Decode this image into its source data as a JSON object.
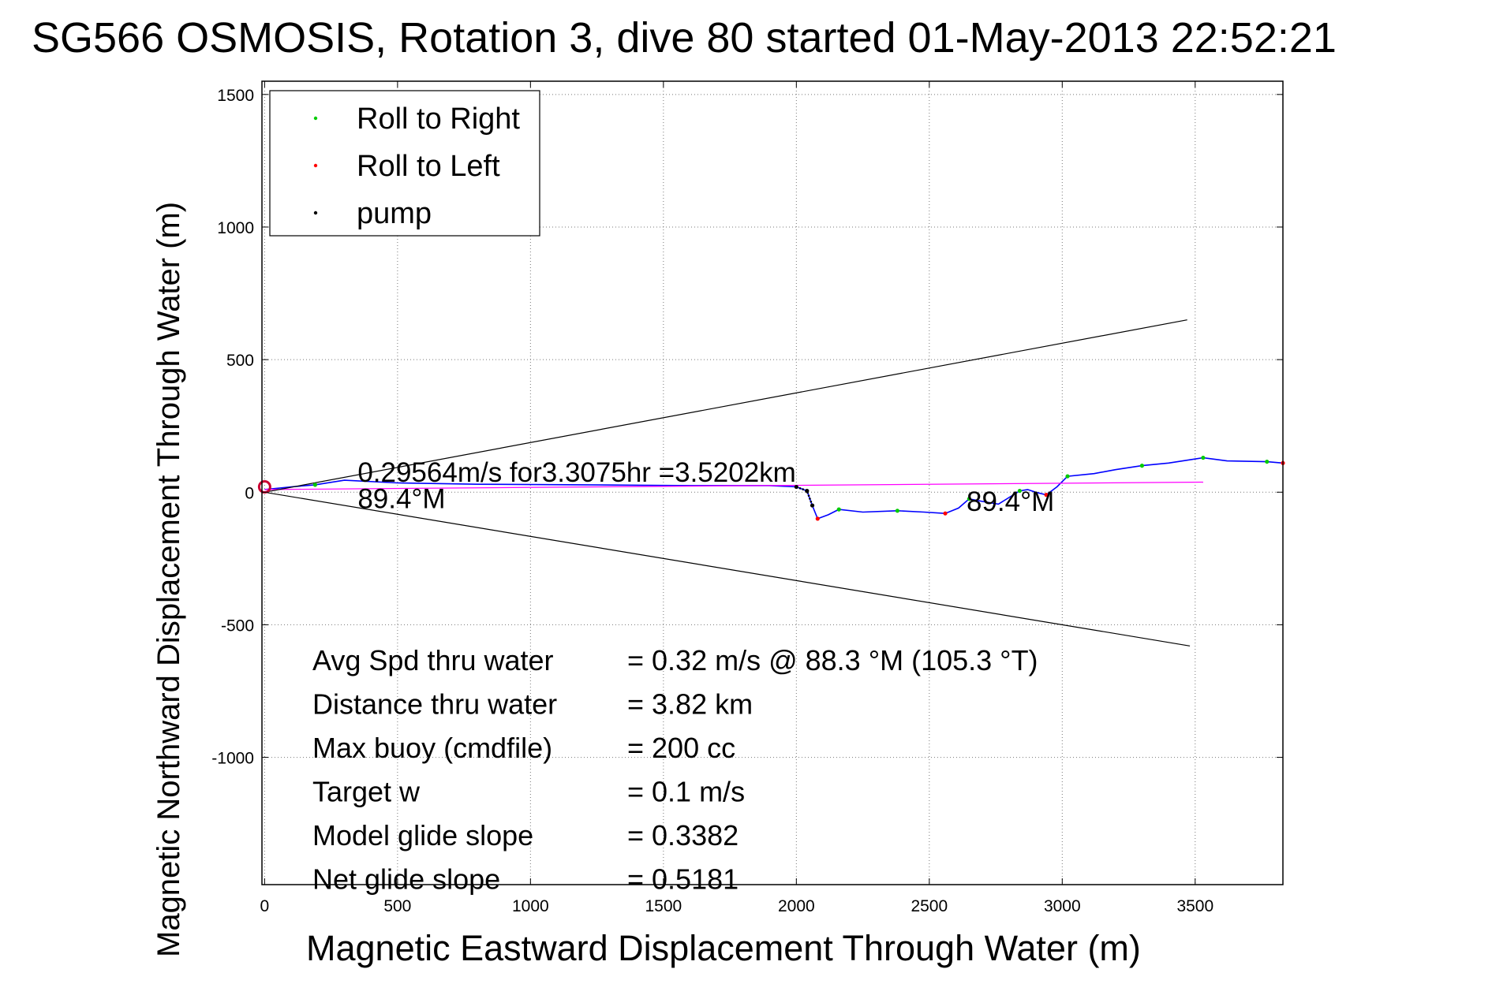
{
  "chart_data": {
    "type": "line",
    "title": "SG566 OSMOSIS, Rotation 3, dive 80 started 01-May-2013 22:52:21",
    "xlabel": "Magnetic Eastward Displacement Through Water (m)",
    "ylabel": "Magnetic Northward Displacement Through Water (m)",
    "xlim": [
      -10,
      3830
    ],
    "ylim": [
      -1480,
      1550
    ],
    "xticks": [
      0,
      500,
      1000,
      1500,
      2000,
      2500,
      3000,
      3500
    ],
    "yticks": [
      -1000,
      -500,
      0,
      500,
      1000,
      1500
    ],
    "xtick_labels": [
      "0",
      "500",
      "1000",
      "1500",
      "2000",
      "2500",
      "3000",
      "3500"
    ],
    "ytick_labels": [
      "-1000",
      "-500",
      "0",
      "500",
      "1000",
      "1500"
    ],
    "grid": true,
    "legend": {
      "position": "top-left",
      "entries": [
        {
          "label": "Roll to Right",
          "color": "#00cc00"
        },
        {
          "label": "Roll to Left",
          "color": "#ff0000"
        },
        {
          "label": "pump",
          "color": "#000000"
        }
      ]
    },
    "series": [
      {
        "kind": "track",
        "color": "#0000ff",
        "x": [
          0,
          100,
          190,
          300,
          500,
          800,
          1200,
          1600,
          1900,
          2000,
          2040,
          2060,
          2080,
          2120,
          2160,
          2250,
          2380,
          2480,
          2560,
          2610,
          2650,
          2700,
          2760,
          2800,
          2840,
          2870,
          2900,
          2940,
          2980,
          3020,
          3120,
          3200,
          3300,
          3400,
          3530,
          3620,
          3770,
          3830
        ],
        "y": [
          10,
          20,
          28,
          45,
          35,
          30,
          28,
          25,
          25,
          20,
          5,
          -50,
          -100,
          -85,
          -65,
          -75,
          -70,
          -75,
          -80,
          -60,
          -25,
          -35,
          -45,
          -20,
          5,
          10,
          0,
          -10,
          20,
          60,
          70,
          85,
          100,
          110,
          130,
          118,
          115,
          110
        ]
      },
      {
        "kind": "average",
        "color": "#ff00ff",
        "x": [
          0,
          3530
        ],
        "y": [
          10,
          38
        ]
      },
      {
        "kind": "cone-upper",
        "color": "#000000",
        "x": [
          0,
          3470
        ],
        "y": [
          0,
          650
        ]
      },
      {
        "kind": "cone-lower",
        "color": "#000000",
        "x": [
          0,
          3480
        ],
        "y": [
          0,
          -580
        ]
      }
    ],
    "markers": {
      "roll_right": {
        "color": "#00cc00",
        "x": [
          190,
          2160,
          2380,
          2650,
          2840,
          3020,
          3300,
          3530,
          3770
        ],
        "y": [
          28,
          -65,
          -70,
          -25,
          5,
          60,
          100,
          130,
          115
        ]
      },
      "roll_left": {
        "color": "#ff0000",
        "x": [
          2080,
          2560,
          2940,
          3830
        ],
        "y": [
          -100,
          -80,
          -10,
          110
        ]
      },
      "pump": {
        "color": "#000000",
        "x": [
          2000,
          2040,
          2060
        ],
        "y": [
          20,
          5,
          -50
        ]
      }
    },
    "annotations": [
      {
        "text": "0.29564m/s for3.3075hr =3.5202km",
        "x": 350,
        "y": 40
      },
      {
        "text": "89.4°M",
        "x": 350,
        "y": -60
      },
      {
        "text": "89.4°M",
        "x": 2640,
        "y": -70
      }
    ],
    "stats": [
      {
        "label": "Avg Spd thru water",
        "value": "=  0.32 m/s @  88.3 °M (105.3 °T)"
      },
      {
        "label": "Distance thru water",
        "value": "=  3.82 km"
      },
      {
        "label": "Max buoy (cmdfile)",
        "value": "= 200 cc"
      },
      {
        "label": "Target w",
        "value": "= 0.1 m/s"
      },
      {
        "label": "Model glide slope",
        "value": "= 0.3382"
      },
      {
        "label": "Net glide slope",
        "value": "= 0.5181"
      }
    ]
  }
}
